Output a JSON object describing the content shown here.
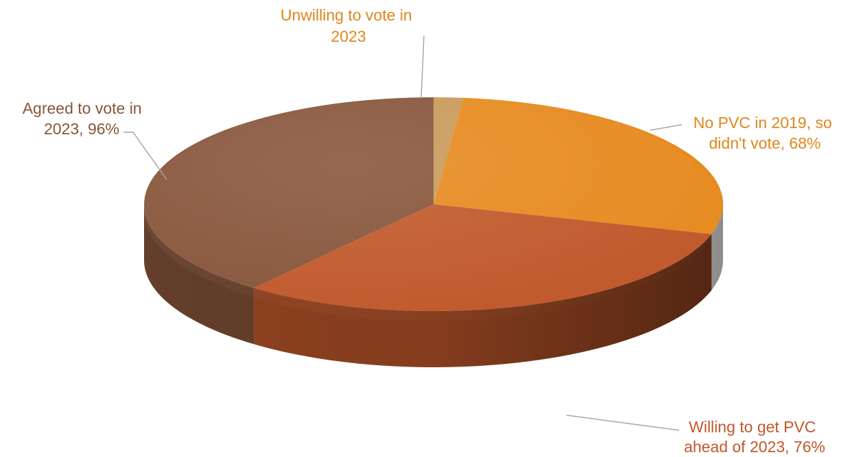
{
  "chart_data": {
    "type": "pie",
    "style": "3d",
    "slices": [
      {
        "id": "unwilling",
        "label": [
          "Unwilling to vote in",
          "2023"
        ],
        "value": 4,
        "color": "#c99a5a"
      },
      {
        "id": "nopvc",
        "label": [
          "No PVC in 2019, so",
          "didn't vote, 68%"
        ],
        "value": 68,
        "color": "#e68a1f"
      },
      {
        "id": "willing",
        "label": [
          "Willing to get PVC",
          "ahead of 2023, 76%"
        ],
        "value": 76,
        "color": "#c0582a"
      },
      {
        "id": "agreed",
        "label": [
          "Agreed to vote in",
          "2023, 96%"
        ],
        "value": 96,
        "color": "#87553a"
      }
    ],
    "label_colors": {
      "unwilling": "#e0861c",
      "nopvc": "#e0861c",
      "willing": "#c0582a",
      "agreed": "#87553a"
    }
  }
}
